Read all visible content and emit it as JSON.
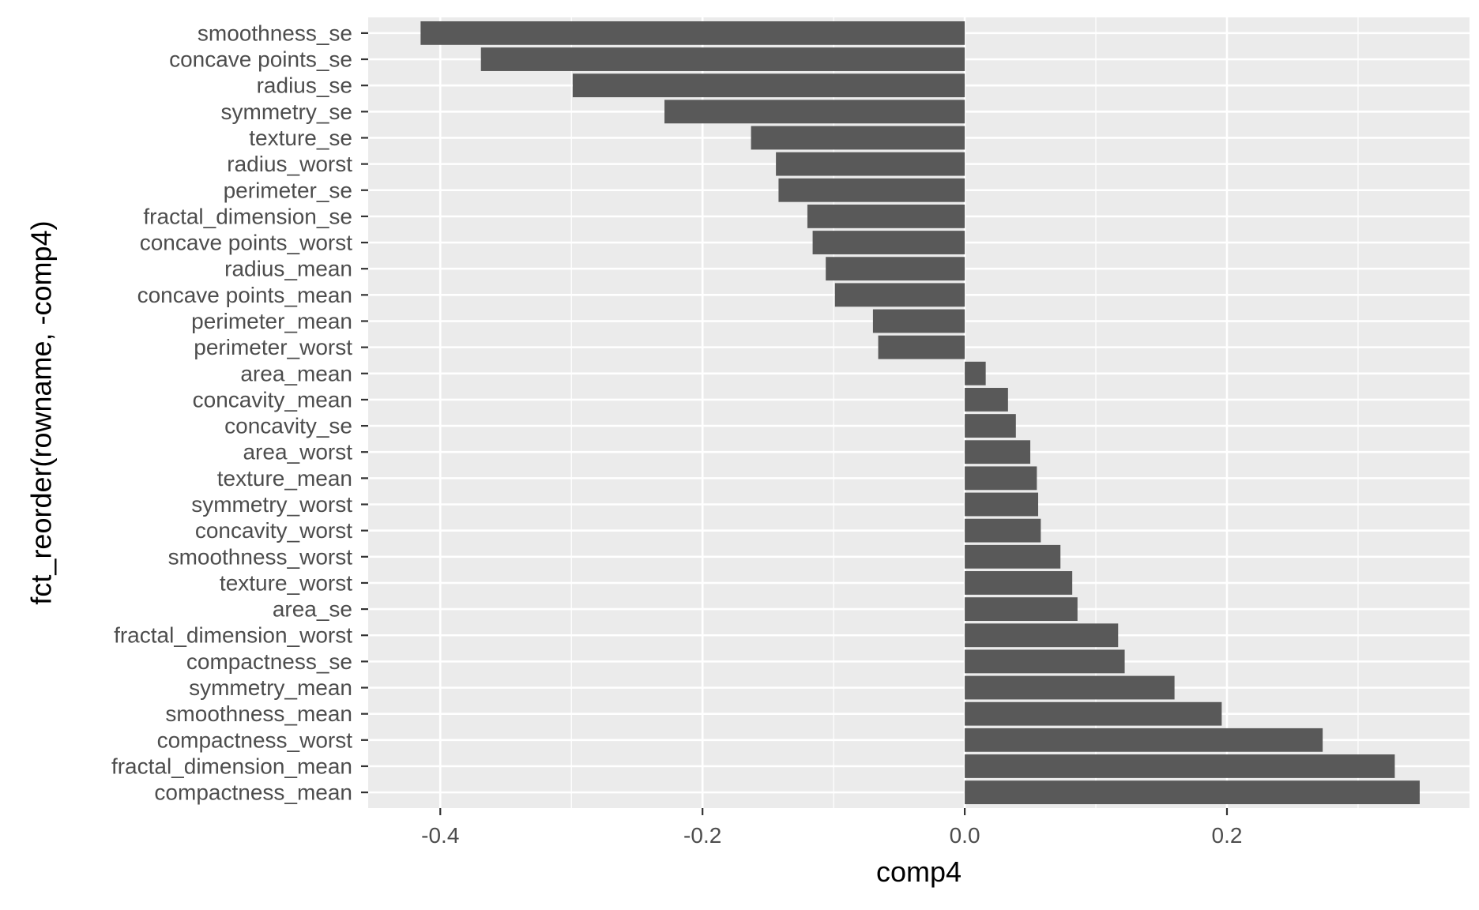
{
  "chart_data": {
    "type": "bar",
    "orientation": "horizontal",
    "xlabel": "comp4",
    "ylabel": "fct_reorder(rowname, -comp4)",
    "xlim": [
      -0.455,
      0.385
    ],
    "x_ticks": [
      -0.4,
      -0.2,
      0.0,
      0.2
    ],
    "x_tick_labels": [
      "-0.4",
      "-0.2",
      "0.0",
      "0.2"
    ],
    "grid": true,
    "panel_background": "#ebebeb",
    "grid_color": "#ffffff",
    "bar_color": "#595959",
    "text_color": "#4d4d4d",
    "categories": [
      "smoothness_se",
      "concave points_se",
      "radius_se",
      "symmetry_se",
      "texture_se",
      "radius_worst",
      "perimeter_se",
      "fractal_dimension_se",
      "concave points_worst",
      "radius_mean",
      "concave points_mean",
      "perimeter_mean",
      "perimeter_worst",
      "area_mean",
      "concavity_mean",
      "concavity_se",
      "area_worst",
      "texture_mean",
      "symmetry_worst",
      "concavity_worst",
      "smoothness_worst",
      "texture_worst",
      "area_se",
      "fractal_dimension_worst",
      "compactness_se",
      "symmetry_mean",
      "smoothness_mean",
      "compactness_worst",
      "fractal_dimension_mean",
      "compactness_mean"
    ],
    "values": [
      -0.415,
      -0.369,
      -0.299,
      -0.229,
      -0.163,
      -0.144,
      -0.142,
      -0.12,
      -0.116,
      -0.106,
      -0.099,
      -0.07,
      -0.066,
      0.016,
      0.033,
      0.039,
      0.05,
      0.055,
      0.056,
      0.058,
      0.073,
      0.082,
      0.086,
      0.117,
      0.122,
      0.16,
      0.196,
      0.273,
      0.328,
      0.347
    ]
  }
}
